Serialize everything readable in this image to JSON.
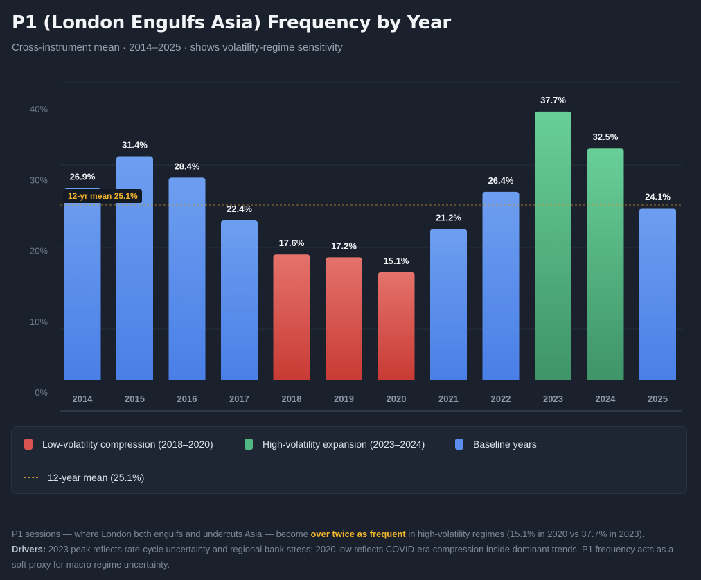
{
  "title": "P1 (London Engulfs Asia) Frequency by Year",
  "subtitle": "Cross-instrument mean · 2014–2025 · shows volatility-regime sensitivity",
  "chart_data": {
    "type": "bar",
    "categories": [
      "2014",
      "2015",
      "2016",
      "2017",
      "2018",
      "2019",
      "2020",
      "2021",
      "2022",
      "2023",
      "2024",
      "2025"
    ],
    "values": [
      26.9,
      31.4,
      28.4,
      22.4,
      17.6,
      17.2,
      15.1,
      21.2,
      26.4,
      37.7,
      32.5,
      24.1
    ],
    "data_labels": [
      "26.9%",
      "31.4%",
      "28.4%",
      "22.4%",
      "17.6%",
      "17.2%",
      "15.1%",
      "21.2%",
      "26.4%",
      "37.7%",
      "32.5%",
      "24.1%"
    ],
    "groups": [
      "baseline",
      "baseline",
      "baseline",
      "baseline",
      "low",
      "low",
      "low",
      "baseline",
      "baseline",
      "high",
      "high",
      "baseline"
    ],
    "yticks": [
      "0%",
      "10%",
      "20%",
      "30%",
      "40%"
    ],
    "ylim": [
      0,
      40
    ],
    "grid": true,
    "mean": {
      "value": 25.1,
      "label": "12-yr mean 25.1%"
    },
    "colors": {
      "low": [
        "#e5726c",
        "#c83b34"
      ],
      "high": [
        "#68cf98",
        "#3f9468"
      ],
      "baseline": [
        "#6d9ef0",
        "#4a7fe6"
      ],
      "mean": "#c9962f"
    }
  },
  "legend": {
    "items": [
      {
        "label": "Low-volatility compression (2018–2020)",
        "color": "#d9534f"
      },
      {
        "label": "High-volatility expansion (2023–2024)",
        "color": "#52b682"
      },
      {
        "label": "Baseline years",
        "color": "#5b8def"
      }
    ],
    "mean_label": "12-year mean (25.1%)"
  },
  "note": {
    "p1_a": "P1 sessions — where London both engulfs and undercuts Asia — become ",
    "p1_hl": "over twice as frequent",
    "p1_b": " in high-volatility regimes (15.1% in 2020 vs 37.7% in 2023).",
    "drivers_label": "Drivers:",
    "drivers": " 2023 peak reflects rate-cycle uncertainty and regional bank stress; 2020 low reflects COVID-era compression inside dominant trends. P1 frequency acts as a soft proxy for macro regime uncertainty."
  }
}
